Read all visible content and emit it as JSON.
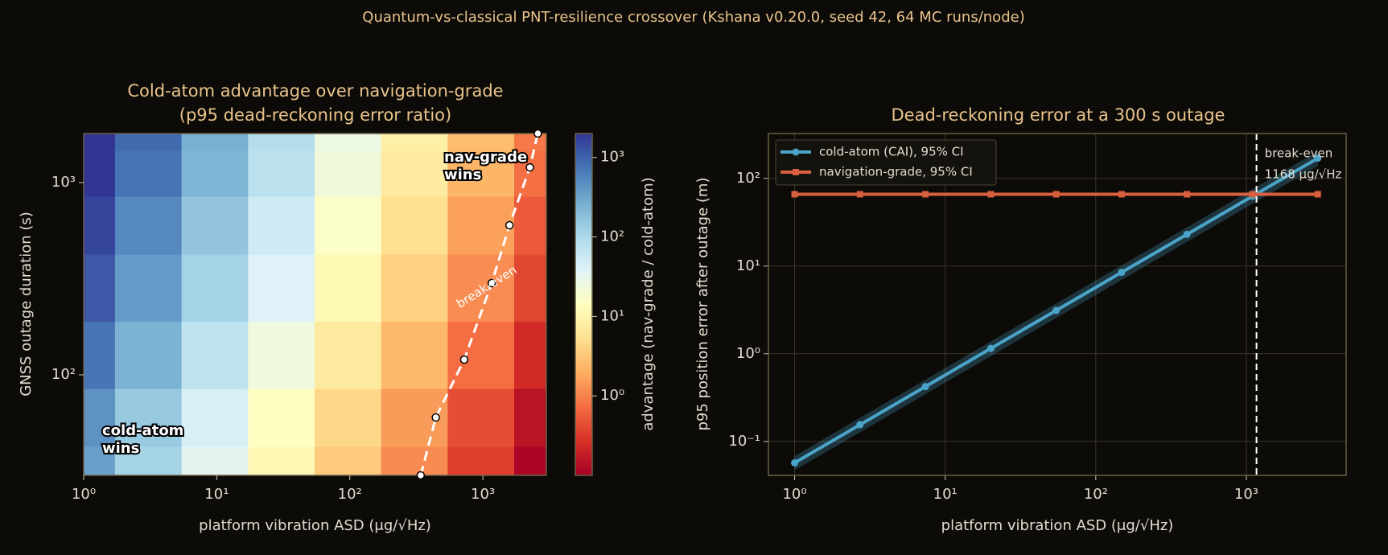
{
  "title": "Quantum-vs-classical PNT-resilience crossover (Kshana v0.20.0, seed 42, 64 MC runs/node)",
  "chart_data": [
    {
      "type": "heatmap",
      "title": [
        "Cold-atom advantage over navigation-grade",
        "(p95 dead-reckoning error ratio)"
      ],
      "xlabel": "platform vibration ASD (μg/√Hz)",
      "ylabel": "GNSS outage duration (s)",
      "colorbar_label": "advantage  (nav-grade / cold-atom)",
      "xscale": "log",
      "yscale": "log",
      "xlim": [
        1,
        3000
      ],
      "ylim": [
        30,
        1800
      ],
      "xticks": [
        {
          "value": 1,
          "label": "10⁰"
        },
        {
          "value": 10,
          "label": "10¹"
        },
        {
          "value": 100,
          "label": "10²"
        },
        {
          "value": 1000,
          "label": "10³"
        }
      ],
      "yticks": [
        {
          "value": 100,
          "label": "10²"
        },
        {
          "value": 1000,
          "label": "10³"
        }
      ],
      "colormap": "RdYlBu",
      "clim": [
        0.1,
        2000
      ],
      "cticks": [
        {
          "value": 1,
          "label": "10⁰"
        },
        {
          "value": 10,
          "label": "10¹"
        },
        {
          "value": 100,
          "label": "10²"
        },
        {
          "value": 1000,
          "label": "10³"
        }
      ],
      "x": [
        1,
        3,
        10,
        30,
        100,
        300,
        1000,
        3000
      ],
      "y": [
        30,
        60,
        120,
        300,
        600,
        1200,
        1800
      ],
      "z": [
        [
          341,
          114,
          34,
          11.4,
          3.4,
          1.14,
          0.34,
          0.11
        ],
        [
          443,
          148,
          44,
          14.8,
          4.4,
          1.48,
          0.44,
          0.15
        ],
        [
          724,
          241,
          72,
          24,
          7.2,
          2.4,
          0.72,
          0.24
        ],
        [
          1166,
          389,
          117,
          39,
          11.7,
          3.9,
          1.17,
          0.39
        ],
        [
          1585,
          528,
          159,
          53,
          15.9,
          5.3,
          1.59,
          0.53
        ],
        [
          2256,
          752,
          226,
          75,
          22.6,
          7.5,
          2.26,
          0.75
        ],
        [
          2590,
          863,
          259,
          86,
          25.9,
          8.6,
          2.59,
          0.86
        ]
      ],
      "break_even": {
        "label": "break-even",
        "color": "#ffffff",
        "asd": [
          341,
          443,
          724,
          1166,
          1585,
          2256,
          2590
        ],
        "outage": [
          30,
          60,
          120,
          300,
          600,
          1200,
          1800
        ]
      },
      "annotations": [
        {
          "lines": [
            "nav-grade",
            "wins"
          ]
        },
        {
          "lines": [
            "cold-atom",
            "wins"
          ]
        }
      ]
    },
    {
      "type": "line",
      "title": "Dead-reckoning error at a 300 s outage",
      "xlabel": "platform vibration ASD (μg/√Hz)",
      "ylabel": "p95 position error after outage (m)",
      "xscale": "log",
      "yscale": "log",
      "xlim": [
        0.67,
        4600
      ],
      "ylim": [
        0.041,
        325
      ],
      "xticks": [
        {
          "value": 1,
          "label": "10⁰"
        },
        {
          "value": 10,
          "label": "10¹"
        },
        {
          "value": 100,
          "label": "10²"
        },
        {
          "value": 1000,
          "label": "10³"
        }
      ],
      "yticks": [
        {
          "value": 0.1,
          "label": "10⁻¹"
        },
        {
          "value": 1,
          "label": "10⁰"
        },
        {
          "value": 10,
          "label": "10¹"
        },
        {
          "value": 100,
          "label": "10²"
        }
      ],
      "grid": true,
      "legend": "upper left",
      "x": [
        1,
        2.718,
        7.389,
        20.09,
        54.6,
        148.4,
        403.4,
        1096.6,
        2981
      ],
      "series": [
        {
          "name": "cold-atom (CAI), 95% CI",
          "color": "#4aa3c8",
          "marker": "circle",
          "values": [
            0.057,
            0.155,
            0.422,
            1.15,
            3.12,
            8.47,
            23.0,
            62.6,
            170
          ],
          "ci_low": [
            0.047,
            0.127,
            0.346,
            0.94,
            2.56,
            6.95,
            18.9,
            51.3,
            139
          ],
          "ci_high": [
            0.068,
            0.186,
            0.506,
            1.38,
            3.74,
            10.2,
            27.6,
            75.1,
            204
          ]
        },
        {
          "name": "navigation-grade, 95% CI",
          "color": "#d9603f",
          "marker": "square",
          "values": [
            66,
            66,
            66,
            66,
            66,
            66,
            66,
            66,
            66
          ]
        }
      ],
      "break_even": {
        "x": 1168,
        "label": "break-even",
        "value_label": "1168 μg/√Hz"
      }
    }
  ]
}
